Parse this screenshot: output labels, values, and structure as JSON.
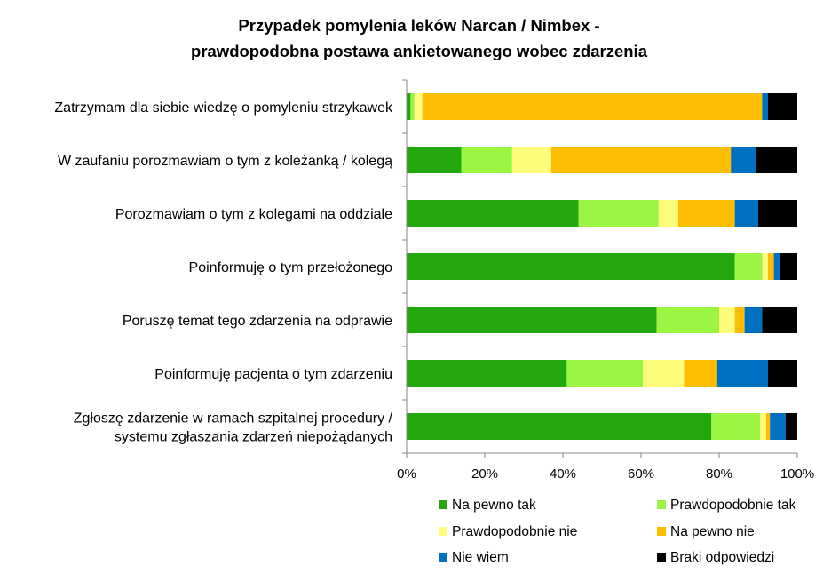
{
  "chart_data": {
    "type": "bar",
    "orientation": "horizontal",
    "stacked": "percent",
    "title": "Przypadek pomylenia leków Narcan / Nimbex -",
    "subtitle": "prawdopodobna postawa ankietowanego wobec zdarzenia",
    "categories": [
      [
        "Zatrzymam dla siebie wiedzę o pomyleniu strzykawek"
      ],
      [
        "W zaufaniu porozmawiam o tym z koleżanką / kolegą"
      ],
      [
        "Porozmawiam o tym z kolegami na oddziale"
      ],
      [
        "Poinformuję o tym przełożonego"
      ],
      [
        "Poruszę temat tego zdarzenia na odprawie"
      ],
      [
        "Poinformuję pacjenta o tym zdarzeniu"
      ],
      [
        "Zgłoszę zdarzenie w ramach szpitalnej procedury /",
        "systemu zgłaszania zdarzeń niepożądanych"
      ]
    ],
    "series": [
      {
        "name": "Na pewno tak",
        "color": "#22a80c",
        "values": [
          1,
          14,
          44,
          84,
          64,
          41,
          78
        ]
      },
      {
        "name": "Prawdopodobnie tak",
        "color": "#9bf542",
        "values": [
          1,
          13,
          20.5,
          7,
          16,
          19.5,
          12.5
        ]
      },
      {
        "name": "Prawdopodobnie nie",
        "color": "#fdfd7b",
        "values": [
          2,
          10,
          5,
          1.5,
          4,
          10.5,
          1.5
        ]
      },
      {
        "name": "Na pewno nie",
        "color": "#fdbd00",
        "values": [
          87,
          46,
          14.5,
          1.5,
          2.5,
          8.5,
          1
        ]
      },
      {
        "name": "Nie wiem",
        "color": "#0070c0",
        "values": [
          1.5,
          6.5,
          6,
          1.5,
          4.5,
          13,
          4
        ]
      },
      {
        "name": "Braki odpowiedzi",
        "color": "#000000",
        "values": [
          7.5,
          10.5,
          10,
          4.5,
          9,
          7.5,
          3
        ]
      }
    ],
    "x_ticks": [
      "0%",
      "20%",
      "40%",
      "60%",
      "80%",
      "100%"
    ],
    "xlim": [
      0,
      100
    ],
    "grid": false,
    "legend_position": "bottom"
  }
}
